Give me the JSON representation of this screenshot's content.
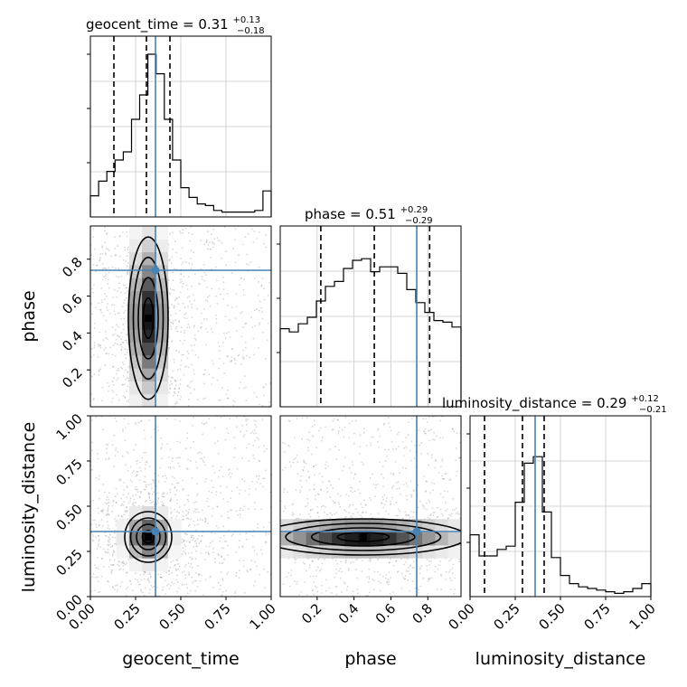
{
  "chart_data": {
    "type": "corner",
    "parameters": [
      "geocent_time",
      "phase",
      "luminosity_distance"
    ],
    "truths": [
      0.36,
      0.74,
      0.36
    ],
    "colors": {
      "truth": "#4682b4",
      "hist": "#000000",
      "grid": "#c8c8c8",
      "scatter": "#8c8c8c"
    },
    "grid": true,
    "axes": {
      "geocent_time": {
        "range": [
          0.0,
          1.0
        ],
        "ticks": [
          "0.00",
          "0.25",
          "0.50",
          "0.75",
          "1.00"
        ]
      },
      "phase": {
        "range": [
          0.0,
          0.98
        ],
        "ticks": [
          "0.2",
          "0.4",
          "0.6",
          "0.8"
        ]
      },
      "luminosity_distance": {
        "range": [
          0.0,
          1.0
        ],
        "ticks": [
          "0.00",
          "0.25",
          "0.50",
          "0.75",
          "1.00"
        ]
      }
    },
    "marginals": [
      {
        "parameter": "geocent_time",
        "title_name": "geocent_time",
        "median": "0.31",
        "plus": "+0.13",
        "minus": "−0.18",
        "quantiles": [
          0.13,
          0.31,
          0.44
        ],
        "hist": [
          0.13,
          0.22,
          0.28,
          0.35,
          0.4,
          0.6,
          0.75,
          1.0,
          0.88,
          0.6,
          0.35,
          0.18,
          0.12,
          0.08,
          0.07,
          0.04,
          0.03,
          0.03,
          0.03,
          0.03,
          0.04,
          0.16
        ]
      },
      {
        "parameter": "phase",
        "title_name": "phase",
        "median": "0.51",
        "plus": "+0.29",
        "minus": "−0.29",
        "quantiles": [
          0.22,
          0.51,
          0.81
        ],
        "hist": [
          0.48,
          0.46,
          0.51,
          0.55,
          0.65,
          0.74,
          0.77,
          0.85,
          0.9,
          0.91,
          0.83,
          0.86,
          0.86,
          0.82,
          0.72,
          0.64,
          0.58,
          0.53,
          0.52,
          0.49
        ]
      },
      {
        "parameter": "luminosity_distance",
        "title_name": "luminosity_distance",
        "median": "0.29",
        "plus": "+0.12",
        "minus": "−0.21",
        "quantiles": [
          0.08,
          0.29,
          0.41
        ],
        "hist": [
          0.38,
          0.25,
          0.25,
          0.29,
          0.31,
          0.58,
          0.82,
          0.86,
          0.52,
          0.24,
          0.13,
          0.08,
          0.06,
          0.05,
          0.04,
          0.03,
          0.02,
          0.03,
          0.05,
          0.08
        ]
      }
    ],
    "pairs": [
      {
        "x": "geocent_time",
        "y": "phase",
        "peak": [
          0.32,
          0.48
        ],
        "spread": [
          0.055,
          0.22
        ]
      },
      {
        "x": "geocent_time",
        "y": "luminosity_distance",
        "peak": [
          0.32,
          0.33
        ],
        "spread": [
          0.065,
          0.07
        ]
      },
      {
        "x": "phase",
        "y": "luminosity_distance",
        "peak": [
          0.45,
          0.33
        ],
        "spread": [
          0.28,
          0.05
        ]
      }
    ]
  }
}
